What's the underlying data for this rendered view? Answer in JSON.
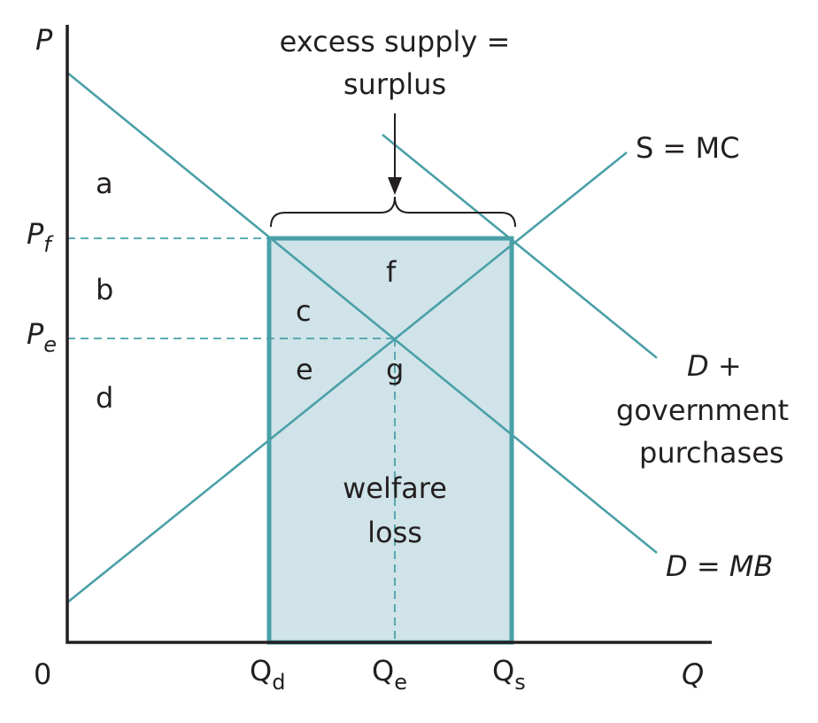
{
  "axes": {
    "y_label": "P",
    "x_label": "Q",
    "origin_label": "0"
  },
  "price_labels": {
    "pf_main": "P",
    "pf_sub": "f",
    "pe_main": "P",
    "pe_sub": "e"
  },
  "quantity_labels": {
    "qd_main": "Q",
    "qd_sub": "d",
    "qe_main": "Q",
    "qe_sub": "e",
    "qs_main": "Q",
    "qs_sub": "s"
  },
  "curves": {
    "supply": "S = MC",
    "demand": "D = MB",
    "demand_gov_line1": "D +",
    "demand_gov_line2": "government",
    "demand_gov_line3": "purchases"
  },
  "annotation": {
    "line1": "excess supply =",
    "line2": "surplus"
  },
  "regions": {
    "a": "a",
    "b": "b",
    "c": "c",
    "d": "d",
    "e": "e",
    "f": "f",
    "g": "g",
    "welfare_line1": "welfare",
    "welfare_line2": "loss"
  },
  "colors": {
    "curve": "#4aa0a8",
    "shade": "#cfe3e8",
    "ink": "#231f20"
  }
}
